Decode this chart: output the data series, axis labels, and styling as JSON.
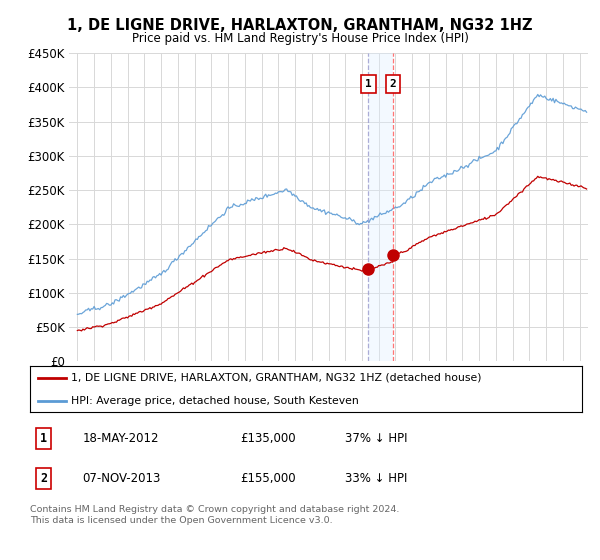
{
  "title": "1, DE LIGNE DRIVE, HARLAXTON, GRANTHAM, NG32 1HZ",
  "subtitle": "Price paid vs. HM Land Registry's House Price Index (HPI)",
  "legend_line1": "1, DE LIGNE DRIVE, HARLAXTON, GRANTHAM, NG32 1HZ (detached house)",
  "legend_line2": "HPI: Average price, detached house, South Kesteven",
  "footer": "Contains HM Land Registry data © Crown copyright and database right 2024.\nThis data is licensed under the Open Government Licence v3.0.",
  "transaction1_label": "1",
  "transaction1_date": "18-MAY-2012",
  "transaction1_price": "£135,000",
  "transaction1_hpi": "37% ↓ HPI",
  "transaction2_label": "2",
  "transaction2_date": "07-NOV-2013",
  "transaction2_price": "£155,000",
  "transaction2_hpi": "33% ↓ HPI",
  "hpi_color": "#5b9bd5",
  "price_color": "#c00000",
  "marker_color": "#c00000",
  "vline_color": "#c8c8ff",
  "vline2_color": "#ff4444",
  "shade_color": "#ddeeff",
  "ylim": [
    0,
    450000
  ],
  "yticks": [
    0,
    50000,
    100000,
    150000,
    200000,
    250000,
    300000,
    350000,
    400000,
    450000
  ],
  "xlim_start": 1994.5,
  "xlim_end": 2025.5,
  "transaction1_x": 2012.38,
  "transaction2_x": 2013.85,
  "transaction1_y": 135000,
  "transaction2_y": 155000,
  "hpi_seed": 12345,
  "prop_seed": 99999
}
